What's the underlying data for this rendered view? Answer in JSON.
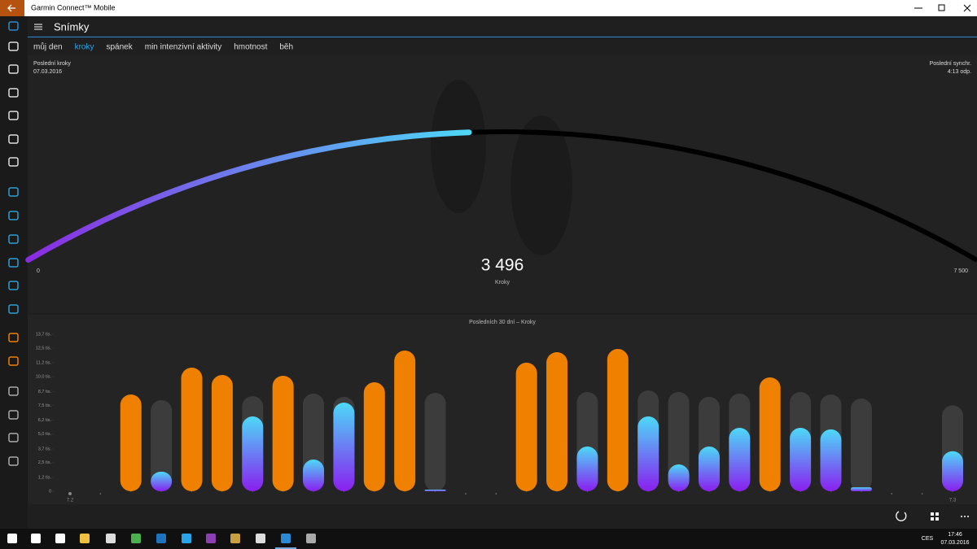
{
  "window": {
    "title": "Garmin Connect™ Mobile"
  },
  "header": {
    "title": "Snímky"
  },
  "tabs": [
    "můj den",
    "kroky",
    "spánek",
    "min intenzivní aktivity",
    "hmotnost",
    "běh"
  ],
  "active_tab": 1,
  "summary": {
    "last_steps_label": "Poslední kroky",
    "last_steps_date": "07.03.2016",
    "last_sync_label": "Poslední synchr.",
    "last_sync_time": "4:13 odp."
  },
  "gauge": {
    "value": {
      "value": 3496,
      "label": "3 496"
    },
    "unit": "Kroky",
    "min": 0,
    "max": {
      "value": 7500,
      "label": "7 500"
    },
    "colors": [
      "#8a2be2",
      "#4dd9f7"
    ],
    "track_color": "#000000"
  },
  "steps_chart": {
    "title": "Posledních 30 dní – Kroky",
    "ylim": [
      0,
      13700
    ],
    "yticks": [
      0,
      {
        "value": 1200,
        "label": "1,2 tis."
      },
      {
        "value": 2500,
        "label": "2,5 tis."
      },
      {
        "value": 3700,
        "label": "3,7 tis."
      },
      {
        "value": 5000,
        "label": "5,0 tis."
      },
      {
        "value": 6200,
        "label": "6,2 tis."
      },
      {
        "value": 7500,
        "label": "7,5 tis."
      },
      {
        "value": 8700,
        "label": "8,7 tis."
      },
      {
        "value": 10000,
        "label": "10,0 tis."
      },
      {
        "value": 11200,
        "label": "11,2 tis."
      },
      {
        "value": 12500,
        "label": "12,5 tis."
      },
      {
        "value": 13700,
        "label": "13,7 tis."
      }
    ],
    "dates": [
      "7.2",
      null,
      null,
      null,
      null,
      null,
      null,
      null,
      null,
      null,
      null,
      null,
      null,
      null,
      null,
      null,
      null,
      null,
      null,
      null,
      null,
      null,
      null,
      null,
      null,
      null,
      null,
      null,
      null,
      "7.3"
    ],
    "steps": [
      null,
      null,
      8450,
      1700,
      10790,
      10150,
      6530,
      10080,
      2770,
      7740,
      9510,
      12280,
      140,
      null,
      null,
      11220,
      12140,
      3900,
      12420,
      6530,
      2340,
      3900,
      5540,
      9940,
      5540,
      5400,
      350,
      null,
      null,
      3496
    ],
    "goals": [
      null,
      null,
      null,
      7950,
      null,
      null,
      8300,
      null,
      8520,
      8240,
      null,
      null,
      8590,
      null,
      null,
      null,
      null,
      8660,
      null,
      8800,
      8660,
      8240,
      8520,
      null,
      8660,
      8450,
      8090,
      null,
      null,
      7500
    ],
    "goal_met_color": "#f08000",
    "goal_color": "#3c3c3c",
    "progress_colors": [
      "#4dd9f7",
      "#8a1ff0"
    ]
  },
  "taskbar": {
    "language": "CES",
    "time": "17:46",
    "date": "07.03.2016"
  }
}
